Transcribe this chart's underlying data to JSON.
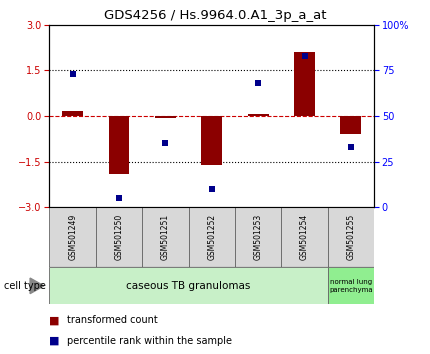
{
  "title": "GDS4256 / Hs.9964.0.A1_3p_a_at",
  "samples": [
    "GSM501249",
    "GSM501250",
    "GSM501251",
    "GSM501252",
    "GSM501253",
    "GSM501254",
    "GSM501255"
  ],
  "transformed_count": [
    0.15,
    -1.9,
    -0.07,
    -1.6,
    0.07,
    2.1,
    -0.6
  ],
  "percentile_rank": [
    73,
    5,
    35,
    10,
    68,
    83,
    33
  ],
  "ylim_left": [
    -3,
    3
  ],
  "ylim_right": [
    0,
    100
  ],
  "yticks_left": [
    -3,
    -1.5,
    0,
    1.5,
    3
  ],
  "yticks_right": [
    0,
    25,
    50,
    75,
    100
  ],
  "ytick_labels_right": [
    "0",
    "25",
    "50",
    "75",
    "100%"
  ],
  "bar_color": "#8B0000",
  "square_color": "#00008B",
  "hline_color": "#CC0000",
  "dotted_color": "#000000",
  "legend_labels": [
    "transformed count",
    "percentile rank within the sample"
  ],
  "cell_type_label": "cell type",
  "bar_width": 0.45,
  "square_size": 25,
  "title_fontsize": 9.5,
  "tick_fontsize": 7,
  "sample_fontsize": 5.5,
  "celltype_fontsize": 7.5,
  "legend_fontsize": 7,
  "ct_light": "#c8f0c8",
  "ct_dark": "#90ee90",
  "sample_bg": "#d8d8d8"
}
